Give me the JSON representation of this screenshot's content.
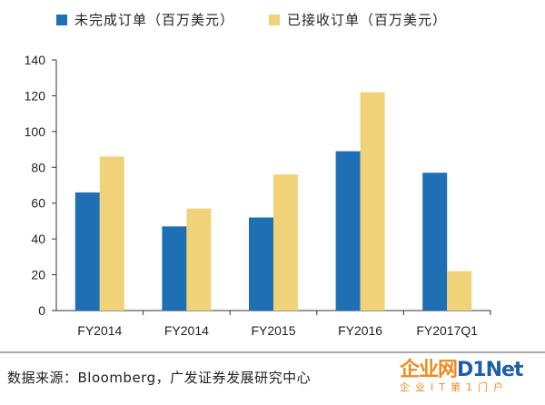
{
  "chart_data": {
    "type": "bar",
    "categories": [
      "FY2014",
      "FY2014",
      "FY2015",
      "FY2016",
      "FY2017Q1"
    ],
    "series": [
      {
        "name": "未完成订单（百万美元）",
        "color": "#1f6fb5",
        "values": [
          66,
          47,
          52,
          89,
          77
        ]
      },
      {
        "name": "已接收订单（百万美元）",
        "color": "#f0d278",
        "values": [
          86,
          57,
          76,
          122,
          22
        ]
      }
    ],
    "ylim": [
      0,
      140
    ],
    "yticks": [
      0,
      20,
      40,
      60,
      80,
      100,
      120,
      140
    ],
    "grid": false,
    "legend_position": "top"
  },
  "source_note": "数据来源：Bloomberg，广发证券发展研究中心",
  "watermark": {
    "main": "企业网D1Net",
    "sub": "企业IT第1门户"
  }
}
